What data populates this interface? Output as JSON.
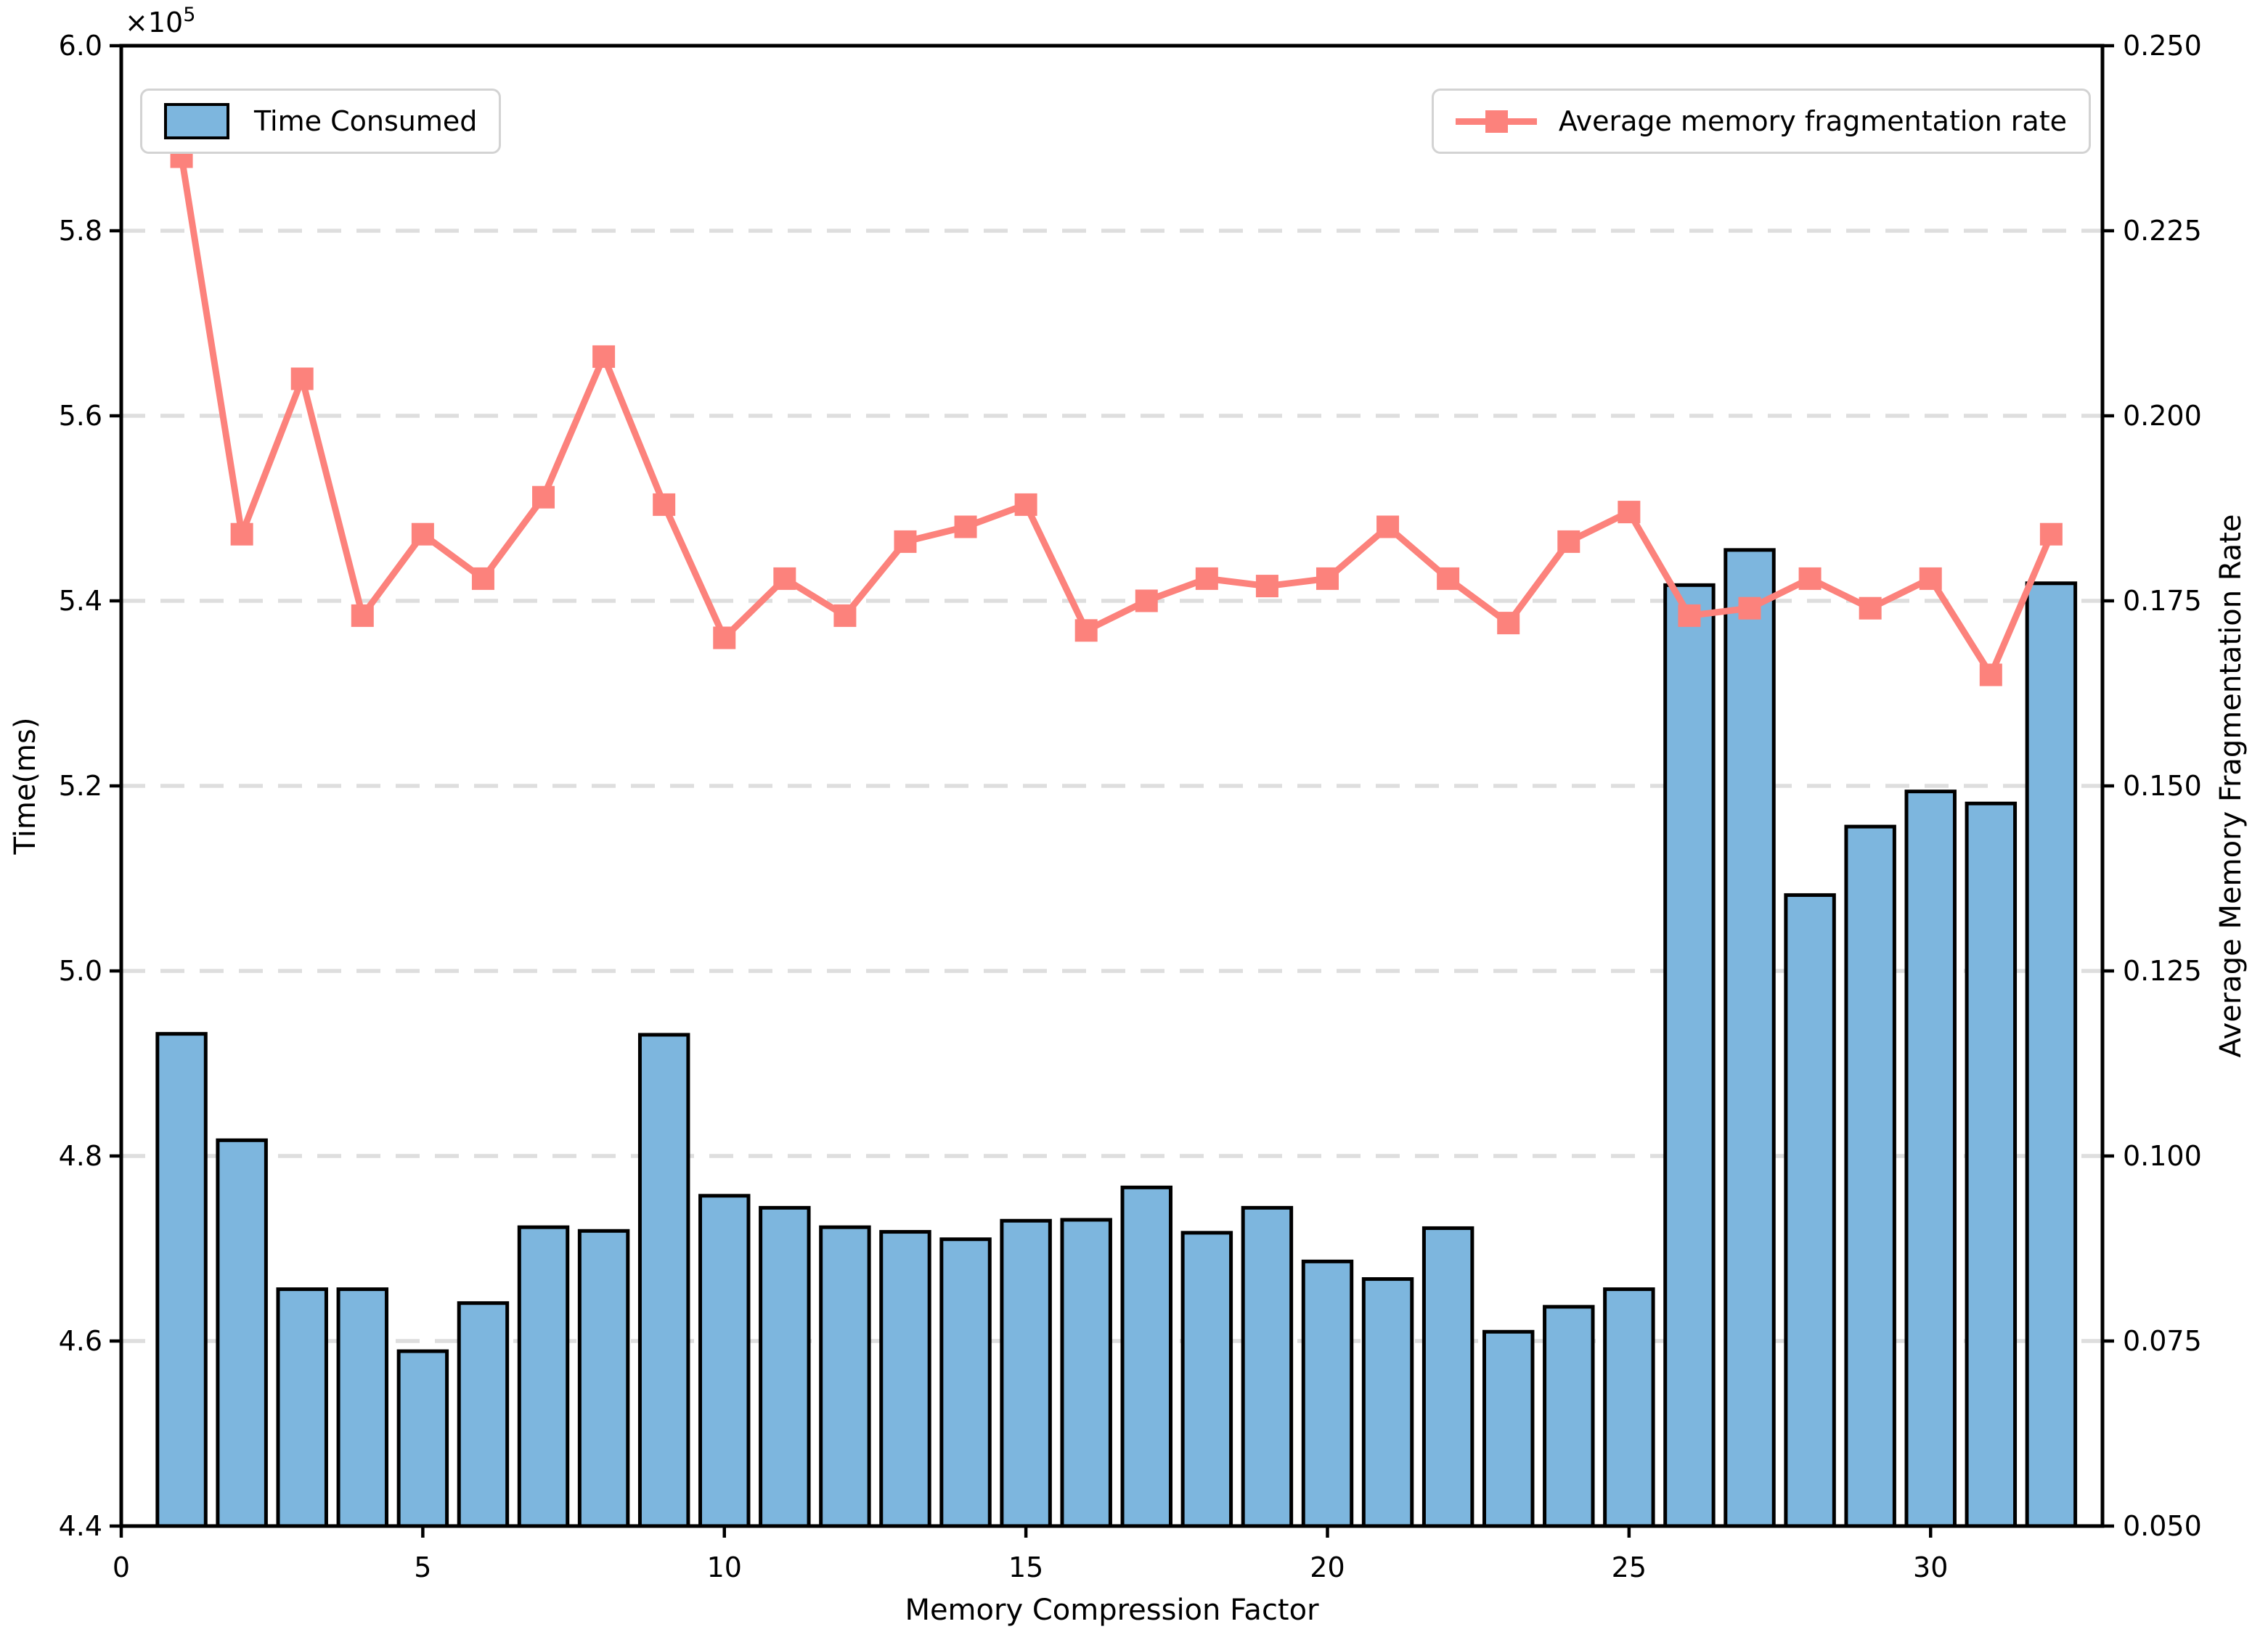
{
  "figure": {
    "background": "#ffffff",
    "offset_label_base": "×10",
    "offset_label_exp": "5"
  },
  "legend_left": {
    "label": "Time Consumed"
  },
  "legend_right": {
    "label": "Average memory fragmentation rate"
  },
  "axes": {
    "x": {
      "label": "Memory Compression Factor",
      "ticks": [
        "0",
        "5",
        "10",
        "15",
        "20",
        "25",
        "30"
      ],
      "tick_values": [
        0,
        5,
        10,
        15,
        20,
        25,
        30
      ],
      "min": 0,
      "max": 32.85
    },
    "y_left": {
      "label": "Time(ms)",
      "ticks": [
        "6.0",
        "5.8",
        "5.6",
        "5.4",
        "5.2",
        "5.0",
        "4.8",
        "4.6",
        "4.4"
      ],
      "tick_values": [
        6.0,
        5.8,
        5.6,
        5.4,
        5.2,
        5.0,
        4.8,
        4.6,
        4.4
      ],
      "min": 4.4,
      "max": 6.0
    },
    "y_right": {
      "label": "Average Memory Fragmentation Rate",
      "ticks": [
        "0.250",
        "0.225",
        "0.200",
        "0.175",
        "0.150",
        "0.125",
        "0.100",
        "0.075",
        "0.050"
      ],
      "tick_values": [
        0.25,
        0.225,
        0.2,
        0.175,
        0.15,
        0.125,
        0.1,
        0.075,
        0.05
      ],
      "min": 0.05,
      "max": 0.25
    }
  },
  "colors": {
    "bar_fill": "#7DB6DE",
    "bar_edge": "#000000",
    "line": "#FC827C",
    "grid": "#DEDEDE",
    "legend_border": "#D3D3D3",
    "axis": "#000000"
  },
  "chart_data": {
    "type": "bar",
    "title": "",
    "xlabel": "Memory Compression Factor",
    "ylabel_left": "Time(ms)",
    "ylabel_right": "Average Memory Fragmentation Rate",
    "x": [
      1,
      2,
      3,
      4,
      5,
      6,
      7,
      8,
      9,
      10,
      11,
      12,
      13,
      14,
      15,
      16,
      17,
      18,
      19,
      20,
      21,
      22,
      23,
      24,
      25,
      26,
      27,
      28,
      29,
      30,
      31,
      32
    ],
    "left_axis_scale": "values are Time(ms) in units of 1e5; axis range 4.4–6.0 (×10⁵)",
    "right_axis_scale": "fragmentation rate; axis range 0.050–0.250",
    "grid": "horizontal dashed at left ticks 4.6–5.8",
    "legend_position": "bar legend top-left, line legend top-right",
    "series": [
      {
        "name": "Time Consumed",
        "type": "bar",
        "axis": "left",
        "values_e5": [
          4.932,
          4.817,
          4.656,
          4.656,
          4.589,
          4.641,
          4.723,
          4.719,
          4.931,
          4.757,
          4.744,
          4.723,
          4.718,
          4.71,
          4.73,
          4.731,
          4.766,
          4.717,
          4.744,
          4.686,
          4.667,
          4.722,
          4.61,
          4.637,
          4.656,
          5.417,
          5.455,
          5.082,
          5.156,
          5.194,
          5.181,
          5.419
        ]
      },
      {
        "name": "Average memory fragmentation rate",
        "type": "line",
        "axis": "right",
        "values": [
          0.235,
          0.184,
          0.205,
          0.173,
          0.184,
          0.178,
          0.189,
          0.208,
          0.188,
          0.17,
          0.178,
          0.173,
          0.183,
          0.185,
          0.188,
          0.171,
          0.175,
          0.178,
          0.177,
          0.178,
          0.185,
          0.178,
          0.172,
          0.183,
          0.187,
          0.173,
          0.174,
          0.178,
          0.174,
          0.178,
          0.165,
          0.184
        ]
      }
    ]
  }
}
